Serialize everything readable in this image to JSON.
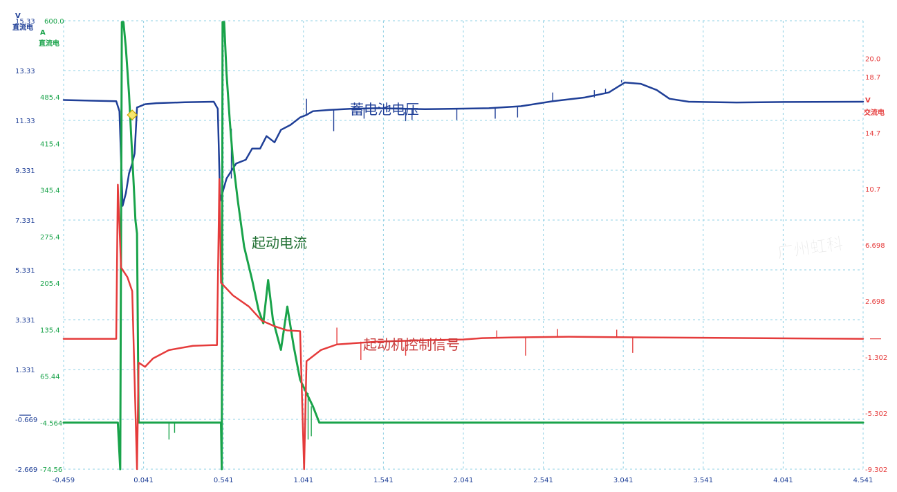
{
  "chart_data": {
    "type": "line",
    "colors": {
      "battery": "#1f3f97",
      "current": "#19a34a",
      "signal": "#e53b3b",
      "grid": "#8fd0e4",
      "marker": "#f6e56e",
      "marker_stroke": "#caa700"
    },
    "x_axis": {
      "ticks": [
        "-0.459",
        "0.041",
        "0.541",
        "1.041",
        "1.541",
        "2.041",
        "2.541",
        "3.041",
        "3.541",
        "4.041",
        "4.541"
      ],
      "range": [
        -0.459,
        4.541
      ]
    },
    "y_axes": {
      "battery_voltage": {
        "unit": "V",
        "name": "直流电",
        "ticks": [
          "15.33",
          "13.33",
          "11.33",
          "9.331",
          "7.331",
          "5.331",
          "3.331",
          "1.331",
          "-0.669",
          "-2.669"
        ],
        "range": [
          -2.669,
          15.33
        ]
      },
      "current": {
        "unit": "A",
        "name": "直流电",
        "ticks": [
          "600.0",
          "485.4",
          "415.4",
          "345.4",
          "275.4",
          "205.4",
          "135.4",
          "65.44",
          "-4.564",
          "-74.56"
        ],
        "range": [
          -74.56,
          600.0
        ]
      },
      "signal_voltage": {
        "unit": "V",
        "name": "交流电",
        "ticks": [
          "20.0",
          "18.7",
          "14.7",
          "10.7",
          "6.698",
          "2.698",
          "-1.302",
          "-5.302",
          "-9.302"
        ],
        "range": [
          -9.302,
          22.7
        ]
      }
    },
    "annotations": {
      "battery": "蓄电池电压",
      "current": "起动电流",
      "signal": "起动机控制信号"
    },
    "marker_point": {
      "x": -0.03,
      "y_v": 11.55
    },
    "series": [
      {
        "name": "蓄电池电压",
        "key": "battery",
        "axis": "battery_voltage",
        "points": [
          [
            -0.459,
            12.15
          ],
          [
            -0.13,
            12.1
          ],
          [
            -0.11,
            11.7
          ],
          [
            -0.09,
            7.9
          ],
          [
            -0.07,
            8.4
          ],
          [
            -0.05,
            9.2
          ],
          [
            -0.03,
            9.6
          ],
          [
            -0.015,
            10.0
          ],
          [
            0.0,
            11.85
          ],
          [
            0.05,
            11.98
          ],
          [
            0.12,
            12.02
          ],
          [
            0.3,
            12.06
          ],
          [
            0.48,
            12.08
          ],
          [
            0.505,
            11.8
          ],
          [
            0.52,
            8.1
          ],
          [
            0.56,
            9.0
          ],
          [
            0.62,
            9.6
          ],
          [
            0.68,
            9.75
          ],
          [
            0.72,
            10.2
          ],
          [
            0.77,
            10.2
          ],
          [
            0.81,
            10.7
          ],
          [
            0.86,
            10.45
          ],
          [
            0.9,
            10.95
          ],
          [
            0.96,
            11.15
          ],
          [
            1.02,
            11.45
          ],
          [
            1.06,
            11.55
          ],
          [
            1.1,
            11.7
          ],
          [
            1.2,
            11.75
          ],
          [
            1.35,
            11.8
          ],
          [
            1.5,
            11.82
          ],
          [
            1.8,
            11.78
          ],
          [
            2.0,
            11.8
          ],
          [
            2.2,
            11.82
          ],
          [
            2.4,
            11.9
          ],
          [
            2.6,
            12.1
          ],
          [
            2.8,
            12.25
          ],
          [
            2.95,
            12.45
          ],
          [
            3.05,
            12.85
          ],
          [
            3.15,
            12.8
          ],
          [
            3.25,
            12.55
          ],
          [
            3.33,
            12.2
          ],
          [
            3.45,
            12.08
          ],
          [
            3.75,
            12.05
          ],
          [
            4.05,
            12.07
          ],
          [
            4.541,
            12.08
          ]
        ],
        "spikes": [
          [
            0.59,
            11.0
          ],
          [
            1.06,
            12.2
          ],
          [
            1.23,
            10.9
          ],
          [
            1.42,
            11.4
          ],
          [
            1.68,
            11.3
          ],
          [
            1.72,
            11.35
          ],
          [
            2.0,
            11.35
          ],
          [
            2.24,
            11.4
          ],
          [
            2.38,
            11.45
          ],
          [
            2.6,
            12.45
          ],
          [
            2.86,
            12.55
          ],
          [
            2.93,
            12.6
          ],
          [
            3.03,
            12.95
          ]
        ]
      },
      {
        "name": "起动电流",
        "key": "current",
        "axis": "current",
        "points": [
          [
            -0.459,
            -4.564
          ],
          [
            -0.12,
            -4.564
          ],
          [
            -0.105,
            -74.56
          ],
          [
            -0.095,
            598.0
          ],
          [
            -0.085,
            598.0
          ],
          [
            -0.07,
            560.0
          ],
          [
            -0.05,
            490.0
          ],
          [
            -0.035,
            420.0
          ],
          [
            -0.02,
            350.0
          ],
          [
            -0.01,
            300.0
          ],
          [
            0.0,
            280.0
          ],
          [
            0.01,
            -4.564
          ],
          [
            0.525,
            -4.564
          ],
          [
            0.53,
            -74.56
          ],
          [
            0.535,
            598.0
          ],
          [
            0.545,
            598.0
          ],
          [
            0.56,
            520.0
          ],
          [
            0.58,
            450.0
          ],
          [
            0.6,
            390.0
          ],
          [
            0.63,
            330.0
          ],
          [
            0.67,
            260.0
          ],
          [
            0.72,
            210.0
          ],
          [
            0.76,
            165.0
          ],
          [
            0.79,
            145.0
          ],
          [
            0.82,
            210.0
          ],
          [
            0.85,
            150.0
          ],
          [
            0.9,
            105.0
          ],
          [
            0.94,
            170.0
          ],
          [
            0.98,
            110.0
          ],
          [
            1.02,
            60.0
          ],
          [
            1.06,
            40.0
          ],
          [
            1.1,
            20.0
          ],
          [
            1.14,
            -4.564
          ],
          [
            4.541,
            -4.564
          ]
        ],
        "spikes": [
          [
            0.2,
            -30.0
          ],
          [
            0.235,
            -20.0
          ],
          [
            0.53,
            -74.56
          ],
          [
            1.07,
            -30.0
          ],
          [
            1.09,
            -25.0
          ]
        ]
      },
      {
        "name": "起动机控制信号",
        "key": "signal",
        "axis": "signal_voltage",
        "points": [
          [
            -0.459,
            0.0
          ],
          [
            -0.13,
            0.0
          ],
          [
            -0.12,
            11.0
          ],
          [
            -0.1,
            5.1
          ],
          [
            -0.06,
            4.4
          ],
          [
            -0.03,
            3.4
          ],
          [
            0.0,
            -9.3
          ],
          [
            0.01,
            -1.7
          ],
          [
            0.05,
            -2.0
          ],
          [
            0.1,
            -1.4
          ],
          [
            0.2,
            -0.8
          ],
          [
            0.35,
            -0.5
          ],
          [
            0.47,
            -0.45
          ],
          [
            0.5,
            -0.45
          ],
          [
            0.515,
            11.4
          ],
          [
            0.525,
            4.0
          ],
          [
            0.6,
            3.1
          ],
          [
            0.7,
            2.3
          ],
          [
            0.78,
            1.3
          ],
          [
            0.86,
            0.9
          ],
          [
            0.94,
            0.6
          ],
          [
            1.02,
            0.55
          ],
          [
            1.045,
            -9.3
          ],
          [
            1.06,
            -1.6
          ],
          [
            1.15,
            -0.8
          ],
          [
            1.25,
            -0.4
          ],
          [
            1.5,
            -0.2
          ],
          [
            1.8,
            -0.1
          ],
          [
            2.04,
            -0.05
          ],
          [
            2.16,
            0.05
          ],
          [
            2.35,
            0.1
          ],
          [
            2.7,
            0.15
          ],
          [
            3.2,
            0.1
          ],
          [
            4.541,
            0.0
          ]
        ],
        "spikes": [
          [
            -0.12,
            11.0
          ],
          [
            0.0,
            -9.3
          ],
          [
            0.515,
            11.4
          ],
          [
            1.045,
            -9.3
          ],
          [
            1.25,
            0.8
          ],
          [
            1.4,
            -1.5
          ],
          [
            1.68,
            -1.2
          ],
          [
            2.25,
            0.6
          ],
          [
            2.43,
            -1.2
          ],
          [
            2.63,
            0.7
          ],
          [
            3.0,
            0.65
          ],
          [
            3.1,
            -1.0
          ]
        ]
      }
    ],
    "grid": true
  },
  "watermark": "广州虹科"
}
